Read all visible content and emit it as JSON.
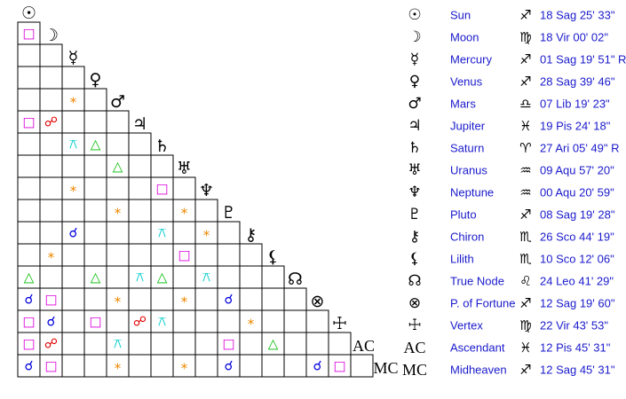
{
  "planets": [
    {
      "symbol": "☉",
      "name": "Sun",
      "sign": "♐",
      "position": "18 Sag 25' 33\""
    },
    {
      "symbol": "☽",
      "name": "Moon",
      "sign": "♍",
      "position": "18 Vir 00' 02\""
    },
    {
      "symbol": "☿",
      "name": "Mercury",
      "sign": "♐",
      "position": "01 Sag 19' 51\" R"
    },
    {
      "symbol": "♀",
      "name": "Venus",
      "sign": "♐",
      "position": "28 Sag 39' 46\""
    },
    {
      "symbol": "♂",
      "name": "Mars",
      "sign": "♎",
      "position": "07 Lib 19' 23\""
    },
    {
      "symbol": "♃",
      "name": "Jupiter",
      "sign": "♓",
      "position": "19 Pis 24' 18\""
    },
    {
      "symbol": "♄",
      "name": "Saturn",
      "sign": "♈",
      "position": "27 Ari 05' 49\" R"
    },
    {
      "symbol": "♅",
      "name": "Uranus",
      "sign": "♒",
      "position": "09 Aqu 57' 20\""
    },
    {
      "symbol": "♆",
      "name": "Neptune",
      "sign": "♒",
      "position": "00 Aqu 20' 59\""
    },
    {
      "symbol": "♇",
      "name": "Pluto",
      "sign": "♐",
      "position": "08 Sag 19' 28\""
    },
    {
      "symbol": "⚷",
      "name": "Chiron",
      "sign": "♏",
      "position": "26 Sco 44' 19\""
    },
    {
      "symbol": "⚸",
      "name": "Lilith",
      "sign": "♏",
      "position": "10 Sco 12' 06\""
    },
    {
      "symbol": "☊",
      "name": "True Node",
      "sign": "♌",
      "position": "24 Leo 41' 29\""
    },
    {
      "symbol": "⊗",
      "name": "P. of Fortune",
      "sign": "♐",
      "position": "12 Sag 19' 60\""
    },
    {
      "symbol": "☩",
      "name": "Vertex",
      "sign": "♍",
      "position": "22 Vir 43' 53\""
    },
    {
      "symbol": "AC",
      "name": "Ascendant",
      "sign": "♓",
      "position": "12 Pis 45' 31\""
    },
    {
      "symbol": "MC",
      "name": "Midheaven",
      "sign": "♐",
      "position": "12 Sag 45' 31\""
    }
  ],
  "grid": {
    "aspect_colors": {
      "□": "#dd00dd",
      "☍": "#e00000",
      "*": "#ee8800",
      "⚻": "#00cccc",
      "△": "#00bb00",
      "☌": "#0000dd"
    },
    "rows": [
      [
        "□"
      ],
      [
        null,
        null
      ],
      [
        null,
        null,
        null
      ],
      [
        null,
        null,
        "*",
        null
      ],
      [
        "□",
        "☍",
        null,
        null,
        null
      ],
      [
        null,
        null,
        "⚻",
        "△",
        null,
        null
      ],
      [
        null,
        null,
        null,
        null,
        "△",
        null,
        null
      ],
      [
        null,
        null,
        "*",
        null,
        null,
        null,
        "□",
        null
      ],
      [
        null,
        null,
        null,
        null,
        "*",
        null,
        null,
        "*",
        null
      ],
      [
        null,
        null,
        "☌",
        null,
        null,
        null,
        "⚻",
        null,
        "*",
        null
      ],
      [
        null,
        "*",
        null,
        null,
        null,
        null,
        null,
        "□",
        null,
        null,
        null
      ],
      [
        "△",
        null,
        null,
        "△",
        null,
        "⚻",
        "△",
        null,
        "⚻",
        null,
        null,
        null
      ],
      [
        "☌",
        "□",
        null,
        null,
        "*",
        null,
        null,
        "*",
        null,
        "☌",
        null,
        null,
        null
      ],
      [
        "□",
        "☌",
        null,
        "□",
        null,
        "☍",
        "⚻",
        null,
        null,
        null,
        "*",
        null,
        null,
        null
      ],
      [
        "□",
        "☍",
        null,
        null,
        "⚻",
        null,
        null,
        null,
        null,
        "□",
        null,
        "△",
        null,
        null,
        null
      ],
      [
        "☌",
        "□",
        null,
        null,
        "*",
        null,
        null,
        "*",
        null,
        "☌",
        null,
        null,
        null,
        "☌",
        "□",
        null
      ]
    ]
  }
}
